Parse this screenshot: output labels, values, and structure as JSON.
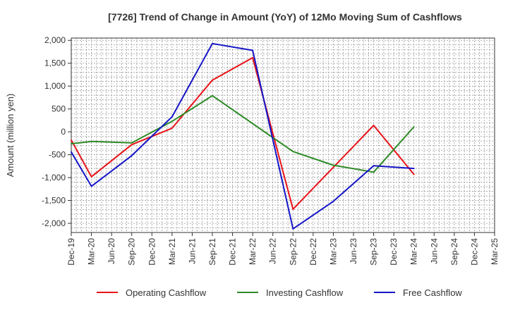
{
  "chart_data": {
    "type": "line",
    "title": "[7726]  Trend of Change in Amount (YoY) of 12Mo Moving Sum of Cashflows",
    "xlabel": "",
    "ylabel": "Amount (million yen)",
    "ylim": [
      -2200,
      2050
    ],
    "yticks": [
      2000,
      1500,
      1000,
      500,
      0,
      -500,
      -1000,
      -1500,
      -2000
    ],
    "ytick_labels": [
      "2,000",
      "1,500",
      "1,000",
      "500",
      "0",
      "-500",
      "-1,000",
      "-1,500",
      "-2,000"
    ],
    "categories": [
      "Dec-19",
      "Mar-20",
      "Jun-20",
      "Sep-20",
      "Dec-20",
      "Mar-21",
      "Jun-21",
      "Sep-21",
      "Dec-21",
      "Mar-22",
      "Jun-22",
      "Sep-22",
      "Dec-22",
      "Mar-23",
      "Jun-23",
      "Sep-23",
      "Dec-23",
      "Mar-24",
      "Jun-24",
      "Sep-24",
      "Dec-24",
      "Mar-25"
    ],
    "grid": true,
    "legend_position": "bottom",
    "series": [
      {
        "name": "Operating Cashflow",
        "color": "#e8141a",
        "values": [
          -180,
          -980,
          null,
          -280,
          null,
          80,
          null,
          1130,
          null,
          1620,
          null,
          -1690,
          null,
          null,
          null,
          140,
          null,
          -930,
          null,
          null,
          null,
          null
        ]
      },
      {
        "name": "Investing Cashflow",
        "color": "#2e8b26",
        "values": [
          -260,
          -210,
          null,
          -240,
          null,
          230,
          null,
          790,
          null,
          null,
          null,
          -430,
          null,
          -730,
          null,
          -880,
          null,
          110,
          null,
          null,
          null,
          null
        ]
      },
      {
        "name": "Free Cashflow",
        "color": "#1515c8",
        "values": [
          -440,
          -1190,
          null,
          -520,
          null,
          330,
          null,
          1930,
          null,
          1780,
          null,
          -2120,
          null,
          -1520,
          null,
          -740,
          null,
          -800,
          null,
          null,
          null,
          null
        ]
      }
    ]
  }
}
